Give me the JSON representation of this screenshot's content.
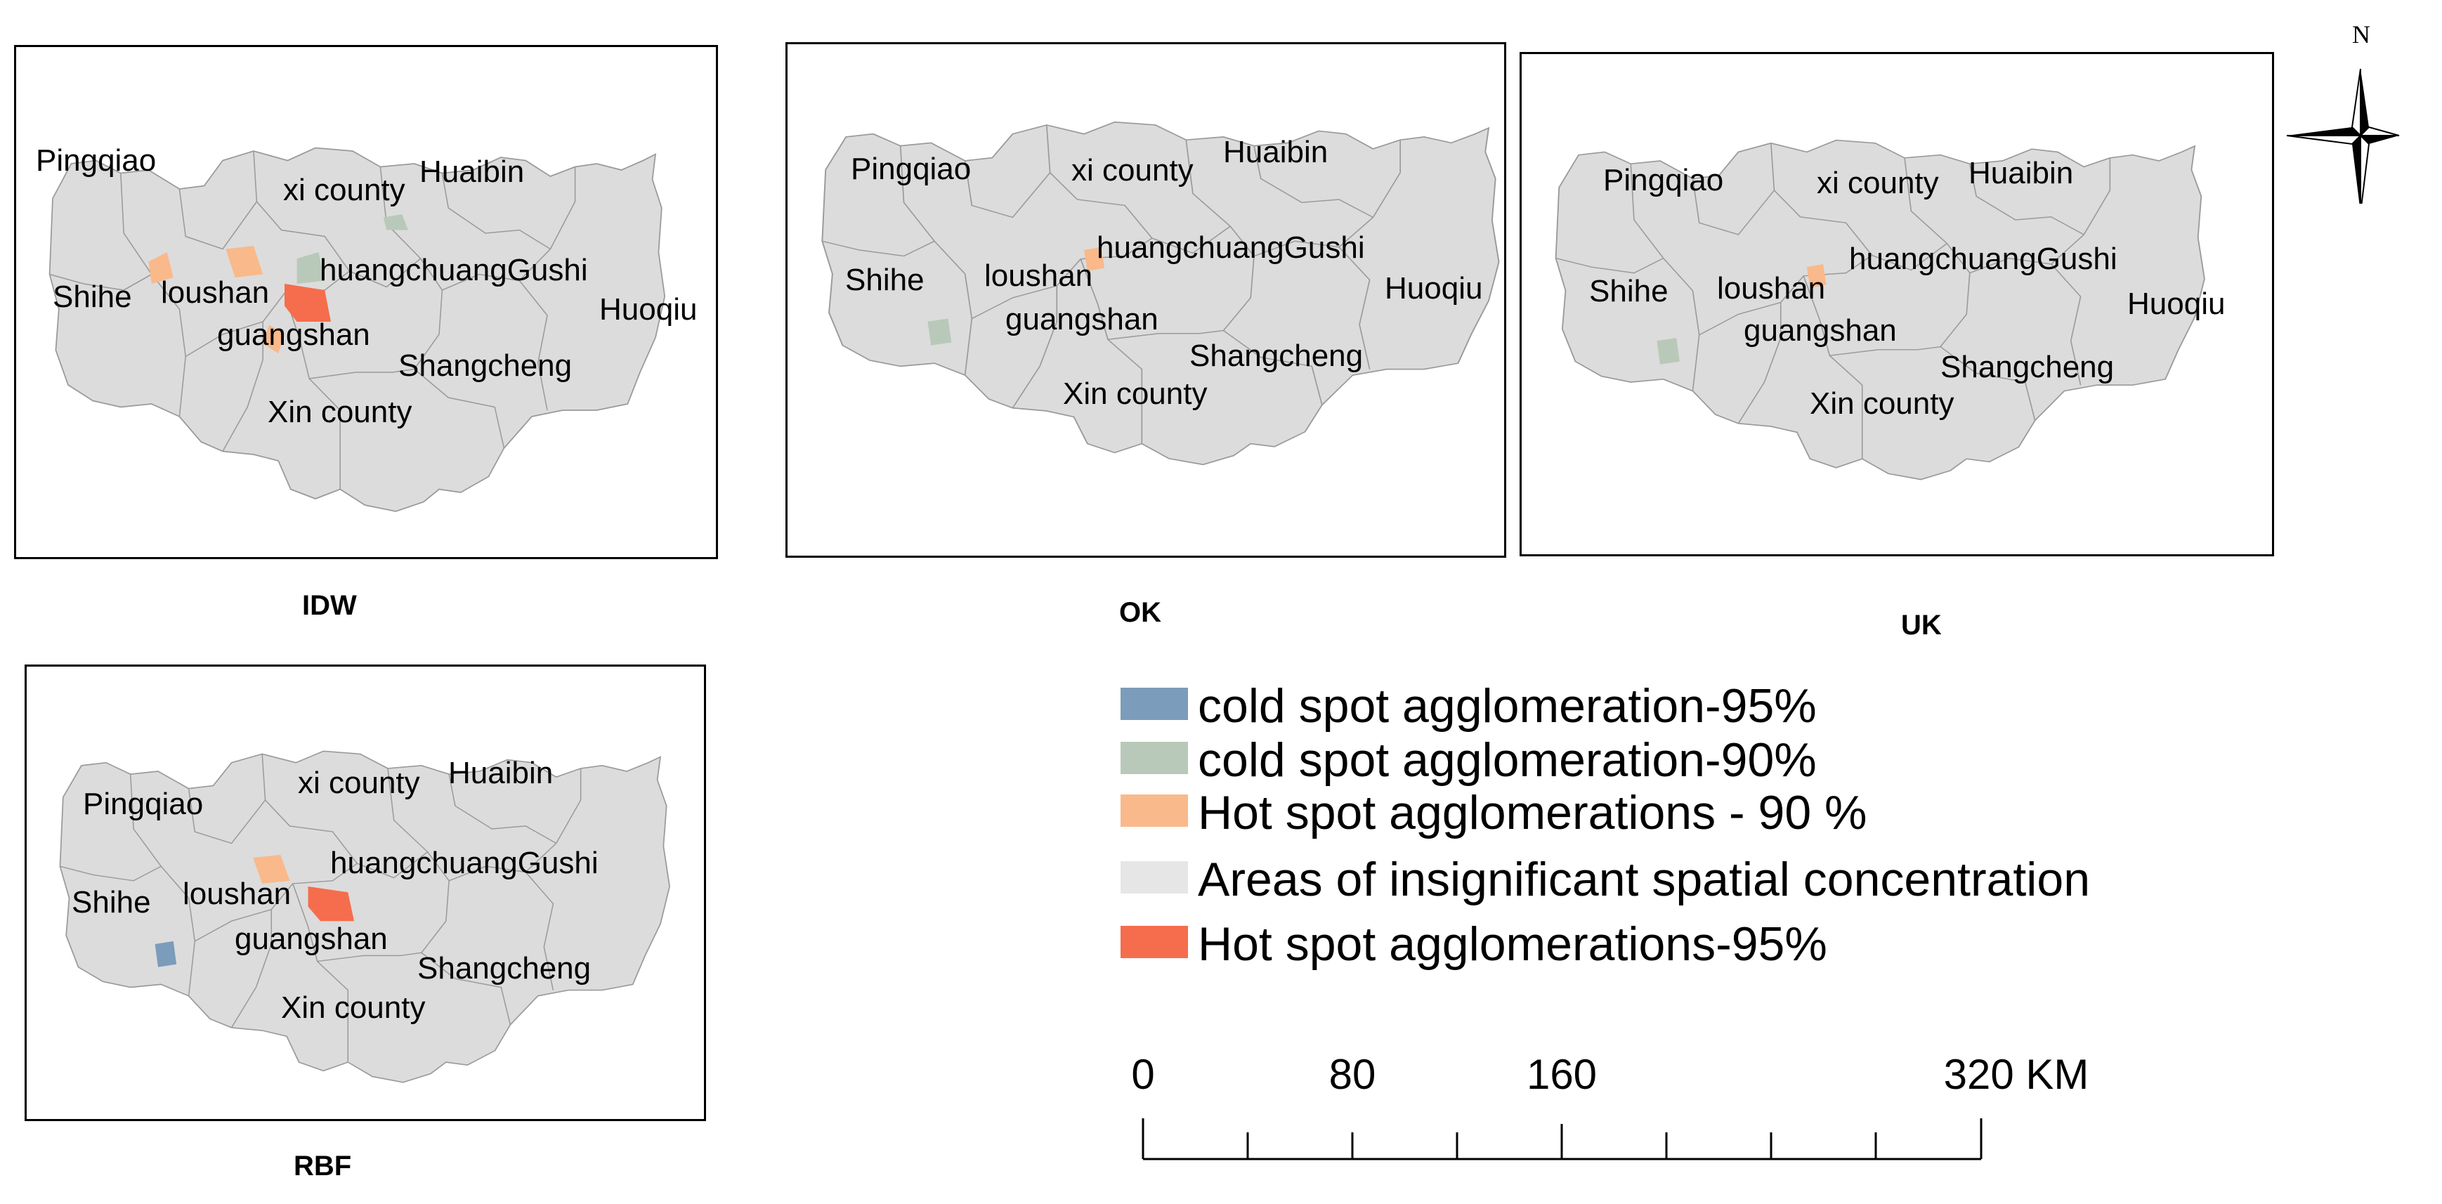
{
  "colors": {
    "land": "#dcdcdc",
    "boundary": "#9a9a9a",
    "cold95": "#7b9cba",
    "cold90": "#b9c9b9",
    "hot90": "#f9b98a",
    "hot95": "#f56d4c",
    "insignificant": "#e6e6e6"
  },
  "maps": [
    {
      "caption": "IDW",
      "labels": {
        "pingqiao": "Pingqiao",
        "xi_county": "xi county",
        "huaibin": "Huaibin",
        "huangchuang_gushi": "huangchuangGushi",
        "shihe": "Shihe",
        "loushan": "loushan",
        "huoqiu": "Huoqiu",
        "guangshan": "guangshan",
        "shangcheng": "Shangcheng",
        "xin_county": "Xin county"
      },
      "hotspots": [
        "hot90-pingqiao-east",
        "hot90-xi-county",
        "cold90-huangchuang",
        "hot95-huangchuang",
        "hot90-guangshan",
        "cold90-huaibin-east"
      ]
    },
    {
      "caption": "OK",
      "labels": {
        "pingqiao": "Pingqiao",
        "xi_county": "xi county",
        "huaibin": "Huaibin",
        "huangchuang_gushi": "huangchuangGushi",
        "shihe": "Shihe",
        "loushan": "loushan",
        "huoqiu": "Huoqiu",
        "guangshan": "guangshan",
        "shangcheng": "Shangcheng",
        "xin_county": "Xin county"
      },
      "hotspots": [
        "hot90-huangchuang",
        "cold90-guangshan"
      ]
    },
    {
      "caption": "UK",
      "labels": {
        "pingqiao": "Pingqiao",
        "xi_county": "xi county",
        "huaibin": "Huaibin",
        "huangchuang_gushi": "huangchuangGushi",
        "shihe": "Shihe",
        "loushan": "loushan",
        "huoqiu": "Huoqiu",
        "guangshan": "guangshan",
        "shangcheng": "Shangcheng",
        "xin_county": "Xin county"
      },
      "hotspots": [
        "hot90-huangchuang",
        "cold90-guangshan"
      ]
    },
    {
      "caption": "RBF",
      "labels": {
        "pingqiao": "Pingqiao",
        "xi_county": "xi county",
        "huaibin": "Huaibin",
        "huangchuang_gushi": "huangchuangGushi",
        "shihe": "Shihe",
        "loushan": "loushan",
        "guangshan": "guangshan",
        "shangcheng": "Shangcheng",
        "xin_county": "Xin county"
      },
      "hotspots": [
        "hot90-xi-county",
        "hot95-huangchuang",
        "cold95-guangshan"
      ]
    }
  ],
  "legend": {
    "items": [
      {
        "label": "cold spot agglomeration-95%",
        "color": "#7b9cba"
      },
      {
        "label": "cold spot agglomeration-90%",
        "color": "#b9c9b9"
      },
      {
        "label": "Hot spot agglomerations - 90 %",
        "color": "#f9b98a"
      },
      {
        "label": "Areas of insignificant spatial concentration",
        "color": "#e6e6e6"
      },
      {
        "label": "Hot spot agglomerations-95%",
        "color": "#f56d4c"
      }
    ]
  },
  "scale_bar": {
    "ticks": [
      "0",
      "80",
      "160",
      "320 KM"
    ],
    "values": [
      0,
      80,
      160,
      320
    ],
    "unit": "KM"
  },
  "north_arrow": {
    "label": "N",
    "icon": "north-arrow-compass"
  }
}
